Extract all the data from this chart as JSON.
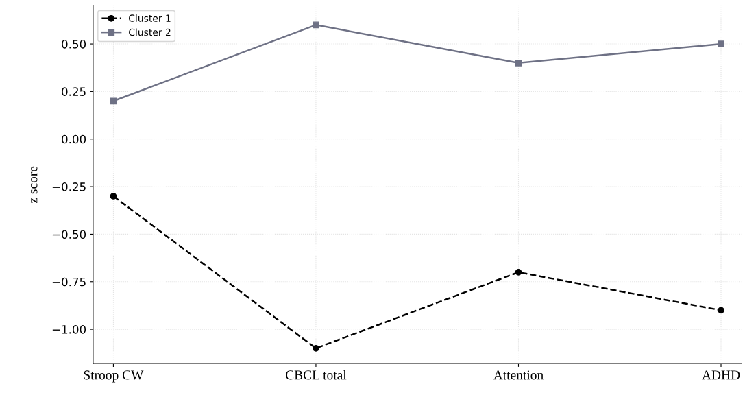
{
  "chart_data": {
    "type": "line",
    "ylabel": "z score",
    "categories": [
      "Stroop CW",
      "CBCL total",
      "Attention",
      "ADHD"
    ],
    "series": [
      {
        "name": "Cluster 1",
        "color": "#000000",
        "values": [
          -0.3,
          -1.1,
          -0.7,
          -0.9
        ],
        "marker": "circle",
        "line_style": "dashed"
      },
      {
        "name": "Cluster 2",
        "color": "#6e7185",
        "values": [
          0.2,
          0.6,
          0.4,
          0.5
        ],
        "marker": "square",
        "line_style": "solid"
      }
    ],
    "ylim": [
      -1.18,
      0.7
    ],
    "yticks": [
      {
        "value": -1.0,
        "label": "−1.00"
      },
      {
        "value": -0.75,
        "label": "−0.75"
      },
      {
        "value": -0.5,
        "label": "−0.50"
      },
      {
        "value": -0.25,
        "label": "−0.25"
      },
      {
        "value": 0.0,
        "label": "0.00"
      },
      {
        "value": 0.25,
        "label": "0.25"
      },
      {
        "value": 0.5,
        "label": "0.50"
      }
    ],
    "grid": true,
    "legend": "top left"
  }
}
